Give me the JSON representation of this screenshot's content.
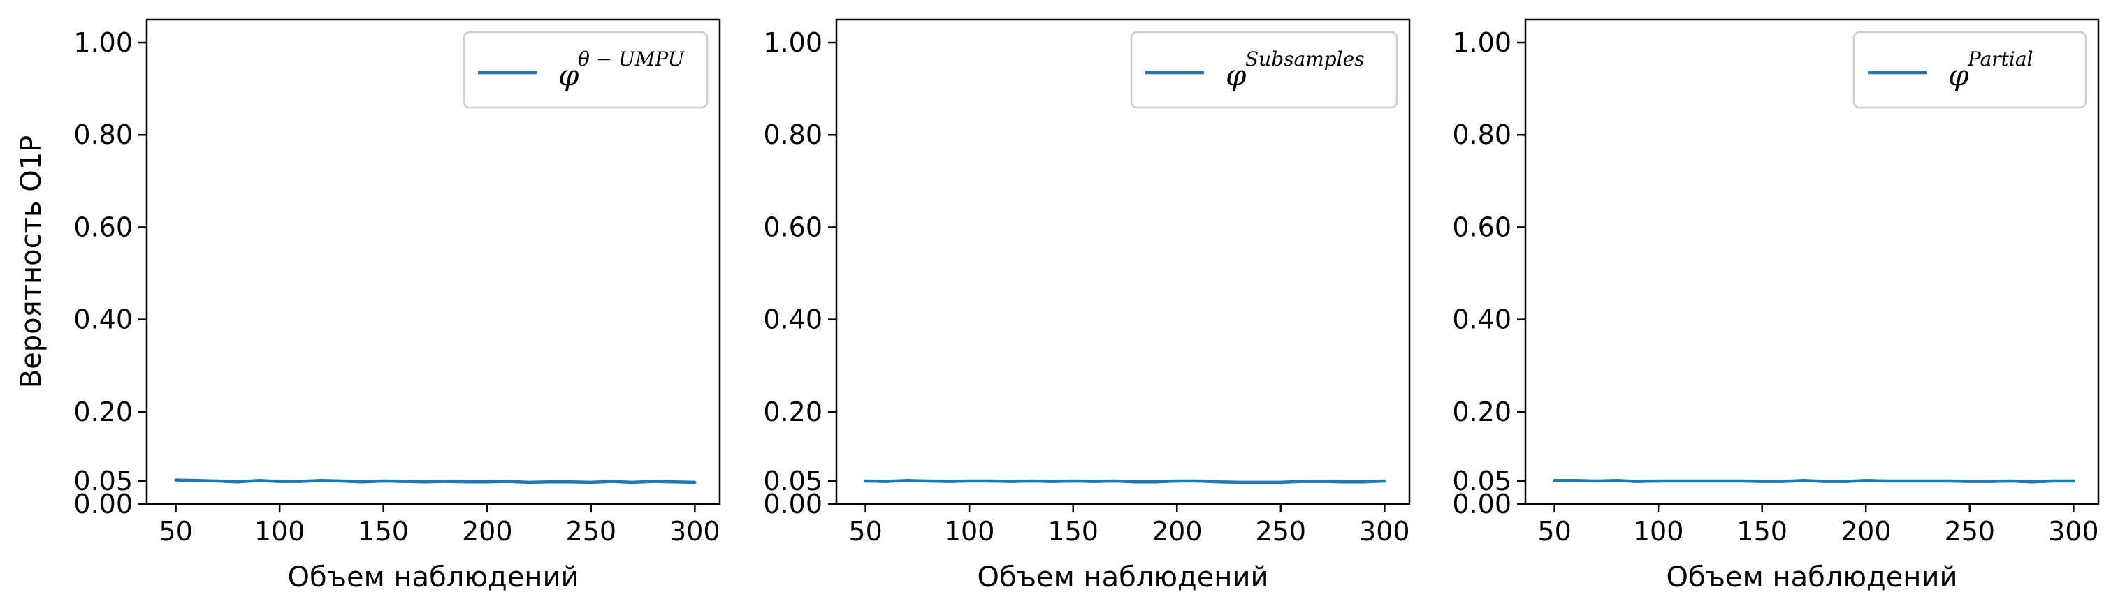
{
  "chart_data": [
    {
      "type": "line",
      "xlabel": "Объем наблюдений",
      "ylabel": "Вероятность О1Р",
      "xlim": [
        36,
        312
      ],
      "ylim": [
        0.0,
        1.05
      ],
      "xticks": [
        50,
        100,
        150,
        200,
        250,
        300
      ],
      "xtick_labels": [
        "50",
        "100",
        "150",
        "200",
        "250",
        "300"
      ],
      "yticks": [
        0.0,
        0.05,
        0.2,
        0.4,
        0.6,
        0.8,
        1.0
      ],
      "ytick_labels": [
        "0.00",
        "0.05",
        "0.20",
        "0.40",
        "0.60",
        "0.80",
        "1.00"
      ],
      "legend_position": "top-right",
      "grid": false,
      "series": [
        {
          "name_base": "φ",
          "name_sup": "θ − UMPU",
          "color": "#1f77b4",
          "x": [
            50,
            60,
            70,
            80,
            90,
            100,
            110,
            120,
            130,
            140,
            150,
            160,
            170,
            180,
            190,
            200,
            210,
            220,
            230,
            240,
            250,
            260,
            270,
            280,
            290,
            300
          ],
          "values": [
            0.052,
            0.051,
            0.05,
            0.048,
            0.051,
            0.049,
            0.049,
            0.051,
            0.05,
            0.048,
            0.05,
            0.049,
            0.048,
            0.049,
            0.048,
            0.048,
            0.049,
            0.047,
            0.048,
            0.048,
            0.047,
            0.049,
            0.047,
            0.049,
            0.048,
            0.047
          ]
        }
      ]
    },
    {
      "type": "line",
      "xlabel": "Объем наблюдений",
      "ylabel": "",
      "xlim": [
        36,
        312
      ],
      "ylim": [
        0.0,
        1.05
      ],
      "xticks": [
        50,
        100,
        150,
        200,
        250,
        300
      ],
      "xtick_labels": [
        "50",
        "100",
        "150",
        "200",
        "250",
        "300"
      ],
      "yticks": [
        0.0,
        0.05,
        0.2,
        0.4,
        0.6,
        0.8,
        1.0
      ],
      "ytick_labels": [
        "0.00",
        "0.05",
        "0.20",
        "0.40",
        "0.60",
        "0.80",
        "1.00"
      ],
      "legend_position": "top-right",
      "grid": false,
      "series": [
        {
          "name_base": "φ",
          "name_sup": "Subsamples",
          "color": "#1f77b4",
          "x": [
            50,
            60,
            70,
            80,
            90,
            100,
            110,
            120,
            130,
            140,
            150,
            160,
            170,
            180,
            190,
            200,
            210,
            220,
            230,
            240,
            250,
            260,
            270,
            280,
            290,
            300
          ],
          "values": [
            0.05,
            0.049,
            0.051,
            0.05,
            0.049,
            0.05,
            0.05,
            0.049,
            0.05,
            0.049,
            0.05,
            0.049,
            0.05,
            0.048,
            0.048,
            0.05,
            0.05,
            0.048,
            0.047,
            0.047,
            0.047,
            0.049,
            0.049,
            0.048,
            0.048,
            0.05
          ]
        }
      ]
    },
    {
      "type": "line",
      "xlabel": "Объем наблюдений",
      "ylabel": "",
      "xlim": [
        36,
        312
      ],
      "ylim": [
        0.0,
        1.05
      ],
      "xticks": [
        50,
        100,
        150,
        200,
        250,
        300
      ],
      "xtick_labels": [
        "50",
        "100",
        "150",
        "200",
        "250",
        "300"
      ],
      "yticks": [
        0.0,
        0.05,
        0.2,
        0.4,
        0.6,
        0.8,
        1.0
      ],
      "ytick_labels": [
        "0.00",
        "0.05",
        "0.20",
        "0.40",
        "0.60",
        "0.80",
        "1.00"
      ],
      "legend_position": "top-right",
      "grid": false,
      "series": [
        {
          "name_base": "φ",
          "name_sup": "Partial",
          "color": "#1f77b4",
          "x": [
            50,
            60,
            70,
            80,
            90,
            100,
            110,
            120,
            130,
            140,
            150,
            160,
            170,
            180,
            190,
            200,
            210,
            220,
            230,
            240,
            250,
            260,
            270,
            280,
            290,
            300
          ],
          "values": [
            0.051,
            0.051,
            0.05,
            0.051,
            0.049,
            0.05,
            0.05,
            0.05,
            0.05,
            0.05,
            0.049,
            0.049,
            0.051,
            0.049,
            0.049,
            0.051,
            0.05,
            0.05,
            0.05,
            0.05,
            0.049,
            0.049,
            0.05,
            0.048,
            0.05,
            0.05
          ]
        }
      ]
    }
  ]
}
